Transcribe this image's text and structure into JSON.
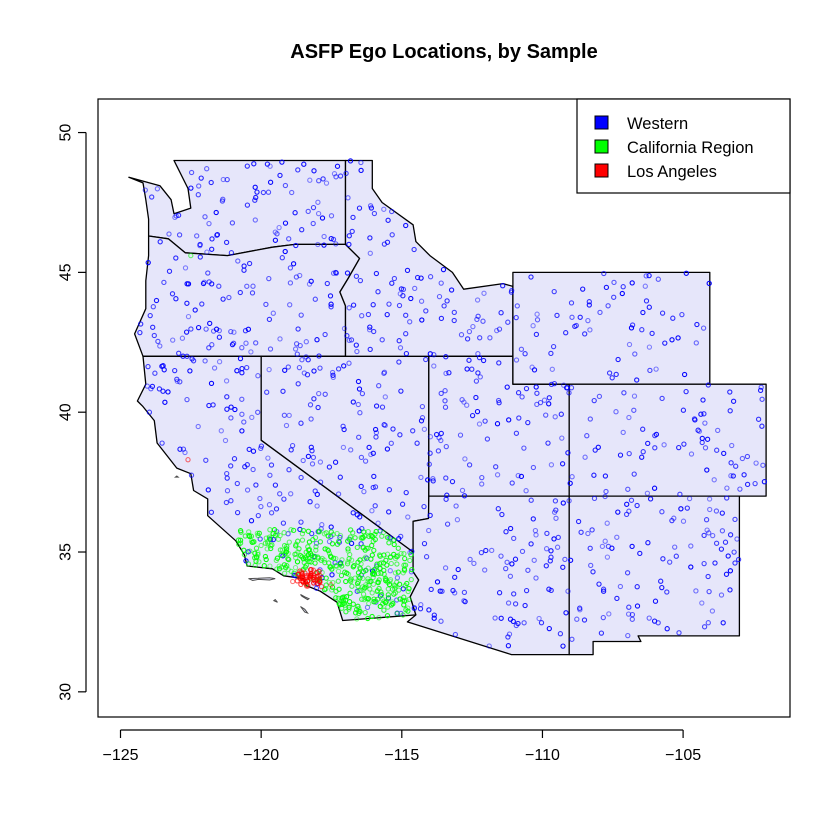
{
  "chart_data": {
    "type": "scatter",
    "title": "ASFP Ego Locations, by Sample",
    "xlabel": "",
    "ylabel": "",
    "xlim": [
      -125.8,
      -101.2
    ],
    "ylim": [
      29.1,
      51.2
    ],
    "x_ticks": [
      -125,
      -120,
      -115,
      -110,
      -105
    ],
    "y_ticks": [
      30,
      35,
      40,
      45,
      50
    ],
    "x_tick_labels": [
      "−125",
      "−120",
      "−115",
      "−110",
      "−105"
    ],
    "y_tick_labels": [
      "30",
      "35",
      "40",
      "45",
      "50"
    ],
    "grid": false,
    "legend_position": "top-right",
    "legend": [
      {
        "label": "Western",
        "color": "#0000ff"
      },
      {
        "label": "California Region",
        "color": "#00ff00"
      },
      {
        "label": "Los Angeles",
        "color": "#ff0000"
      }
    ],
    "map_fill": "#e6e6fa",
    "state_border_color": "#000000",
    "outline_color": "#4d4d4d",
    "states": [
      {
        "name": "WA",
        "polygon": [
          [
            -124.7,
            48.4
          ],
          [
            -124.2,
            48.2
          ],
          [
            -124.1,
            47.6
          ],
          [
            -124.0,
            46.9
          ],
          [
            -124.0,
            46.3
          ],
          [
            -123.3,
            46.2
          ],
          [
            -122.7,
            45.7
          ],
          [
            -121.2,
            45.6
          ],
          [
            -119.6,
            45.9
          ],
          [
            -118.8,
            46.0
          ],
          [
            -117.0,
            46.0
          ],
          [
            -117.0,
            49.0
          ],
          [
            -123.1,
            49.0
          ],
          [
            -123.0,
            48.8
          ],
          [
            -122.6,
            48.0
          ],
          [
            -122.5,
            47.3
          ],
          [
            -123.1,
            47.1
          ],
          [
            -123.2,
            47.6
          ],
          [
            -123.6,
            48.1
          ],
          [
            -124.7,
            48.4
          ]
        ]
      },
      {
        "name": "OR",
        "polygon": [
          [
            -124.0,
            46.3
          ],
          [
            -123.3,
            46.2
          ],
          [
            -122.7,
            45.7
          ],
          [
            -121.2,
            45.6
          ],
          [
            -119.6,
            45.9
          ],
          [
            -118.8,
            46.0
          ],
          [
            -117.0,
            46.0
          ],
          [
            -116.5,
            45.5
          ],
          [
            -116.9,
            44.8
          ],
          [
            -117.2,
            44.3
          ],
          [
            -117.0,
            43.8
          ],
          [
            -117.0,
            42.0
          ],
          [
            -124.2,
            42.0
          ],
          [
            -124.5,
            42.8
          ],
          [
            -124.1,
            43.7
          ],
          [
            -124.1,
            44.7
          ],
          [
            -124.0,
            45.6
          ],
          [
            -124.0,
            46.3
          ]
        ]
      },
      {
        "name": "CA",
        "polygon": [
          [
            -124.2,
            42.0
          ],
          [
            -120.0,
            42.0
          ],
          [
            -120.0,
            39.0
          ],
          [
            -114.6,
            35.0
          ],
          [
            -114.6,
            34.3
          ],
          [
            -114.4,
            34.0
          ],
          [
            -114.7,
            33.4
          ],
          [
            -114.5,
            32.75
          ],
          [
            -117.1,
            32.55
          ],
          [
            -117.3,
            33.2
          ],
          [
            -117.9,
            33.6
          ],
          [
            -118.4,
            33.8
          ],
          [
            -118.5,
            34.05
          ],
          [
            -119.2,
            34.15
          ],
          [
            -119.6,
            34.4
          ],
          [
            -120.5,
            34.5
          ],
          [
            -120.6,
            34.9
          ],
          [
            -120.9,
            35.4
          ],
          [
            -121.9,
            36.3
          ],
          [
            -121.9,
            36.9
          ],
          [
            -122.4,
            37.2
          ],
          [
            -122.5,
            37.8
          ],
          [
            -123.0,
            38.0
          ],
          [
            -123.7,
            38.9
          ],
          [
            -123.8,
            39.7
          ],
          [
            -124.2,
            40.2
          ],
          [
            -124.4,
            40.4
          ],
          [
            -124.1,
            41.0
          ],
          [
            -124.2,
            42.0
          ]
        ]
      },
      {
        "name": "NV",
        "polygon": [
          [
            -120.0,
            42.0
          ],
          [
            -114.04,
            42.0
          ],
          [
            -114.04,
            37.0
          ],
          [
            -114.05,
            36.2
          ],
          [
            -114.6,
            36.1
          ],
          [
            -114.6,
            35.0
          ],
          [
            -120.0,
            39.0
          ],
          [
            -120.0,
            42.0
          ]
        ]
      },
      {
        "name": "ID",
        "polygon": [
          [
            -117.0,
            49.0
          ],
          [
            -116.05,
            49.0
          ],
          [
            -116.05,
            48.0
          ],
          [
            -115.7,
            47.5
          ],
          [
            -114.6,
            46.7
          ],
          [
            -114.5,
            46.1
          ],
          [
            -114.0,
            45.6
          ],
          [
            -113.2,
            45.0
          ],
          [
            -112.8,
            44.4
          ],
          [
            -111.4,
            44.6
          ],
          [
            -111.05,
            44.5
          ],
          [
            -111.05,
            42.0
          ],
          [
            -117.0,
            42.0
          ],
          [
            -117.0,
            43.8
          ],
          [
            -117.2,
            44.3
          ],
          [
            -116.9,
            44.8
          ],
          [
            -116.5,
            45.5
          ],
          [
            -117.0,
            46.0
          ],
          [
            -117.0,
            49.0
          ]
        ]
      },
      {
        "name": "UT",
        "polygon": [
          [
            -114.04,
            42.0
          ],
          [
            -111.05,
            42.0
          ],
          [
            -111.05,
            41.0
          ],
          [
            -109.05,
            41.0
          ],
          [
            -109.05,
            37.0
          ],
          [
            -114.04,
            37.0
          ],
          [
            -114.04,
            42.0
          ]
        ]
      },
      {
        "name": "AZ",
        "polygon": [
          [
            -114.04,
            37.0
          ],
          [
            -109.05,
            37.0
          ],
          [
            -109.05,
            31.33
          ],
          [
            -111.1,
            31.33
          ],
          [
            -114.8,
            32.5
          ],
          [
            -114.5,
            32.75
          ],
          [
            -114.7,
            33.4
          ],
          [
            -114.4,
            34.0
          ],
          [
            -114.6,
            34.3
          ],
          [
            -114.6,
            35.0
          ],
          [
            -114.6,
            36.1
          ],
          [
            -114.05,
            36.2
          ],
          [
            -114.04,
            37.0
          ]
        ]
      },
      {
        "name": "WY",
        "polygon": [
          [
            -111.05,
            45.0
          ],
          [
            -104.05,
            45.0
          ],
          [
            -104.05,
            41.0
          ],
          [
            -111.05,
            41.0
          ],
          [
            -111.05,
            45.0
          ]
        ]
      },
      {
        "name": "CO",
        "polygon": [
          [
            -109.05,
            41.0
          ],
          [
            -102.05,
            41.0
          ],
          [
            -102.05,
            37.0
          ],
          [
            -109.05,
            37.0
          ],
          [
            -109.05,
            41.0
          ]
        ]
      },
      {
        "name": "NM",
        "polygon": [
          [
            -109.05,
            37.0
          ],
          [
            -103.0,
            37.0
          ],
          [
            -103.0,
            32.0
          ],
          [
            -106.6,
            32.0
          ],
          [
            -106.5,
            31.8
          ],
          [
            -108.2,
            31.8
          ],
          [
            -108.2,
            31.33
          ],
          [
            -109.05,
            31.33
          ],
          [
            -109.05,
            37.0
          ]
        ]
      }
    ],
    "islands": [
      {
        "polygon": [
          [
            -120.45,
            34.05
          ],
          [
            -120.3,
            33.98
          ],
          [
            -120.1,
            34.02
          ],
          [
            -119.7,
            34.0
          ],
          [
            -119.5,
            34.05
          ],
          [
            -119.7,
            34.08
          ],
          [
            -120.1,
            34.06
          ],
          [
            -120.45,
            34.05
          ]
        ]
      },
      {
        "polygon": [
          [
            -119.55,
            33.26
          ],
          [
            -119.42,
            33.2
          ],
          [
            -119.5,
            33.3
          ],
          [
            -119.55,
            33.26
          ]
        ]
      },
      {
        "polygon": [
          [
            -118.6,
            33.48
          ],
          [
            -118.45,
            33.4
          ],
          [
            -118.3,
            33.33
          ],
          [
            -118.35,
            33.3
          ],
          [
            -118.55,
            33.42
          ],
          [
            -118.6,
            33.48
          ]
        ]
      },
      {
        "polygon": [
          [
            -118.6,
            33.05
          ],
          [
            -118.45,
            32.95
          ],
          [
            -118.35,
            32.82
          ],
          [
            -118.45,
            32.85
          ],
          [
            -118.6,
            33.05
          ]
        ]
      },
      {
        "polygon": [
          [
            -123.0,
            37.72
          ],
          [
            -122.95,
            37.68
          ],
          [
            -123.05,
            37.68
          ],
          [
            -123.0,
            37.72
          ]
        ]
      }
    ],
    "series": [
      {
        "name": "Western",
        "color": "#0000ff",
        "count": 980,
        "regions": [
          "WA",
          "OR",
          "CA",
          "NV",
          "ID",
          "UT",
          "AZ",
          "WY",
          "CO",
          "NM"
        ]
      },
      {
        "name": "California Region",
        "color": "#00ff00",
        "count": 420,
        "region_box": {
          "x": [
            -120.9,
            -114.6
          ],
          "y": [
            32.6,
            35.8
          ]
        },
        "within": "CA"
      },
      {
        "name": "Los Angeles",
        "color": "#ff0000",
        "count": 55,
        "center": [
          -118.35,
          34.05
        ],
        "spread": [
          0.25,
          0.18
        ]
      }
    ],
    "extra_points": [
      {
        "series": "Los Angeles",
        "x": -122.6,
        "y": 38.3
      },
      {
        "series": "California Region",
        "x": -122.5,
        "y": 45.6
      }
    ]
  }
}
